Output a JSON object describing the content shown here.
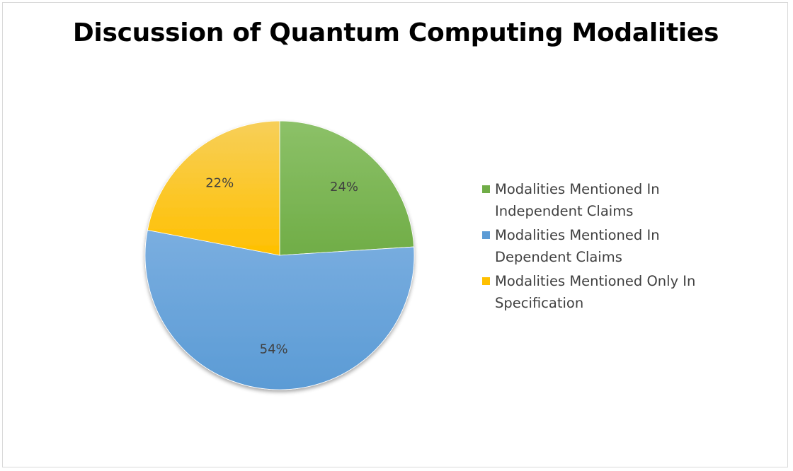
{
  "chart_data": {
    "type": "pie",
    "title": "Discussion of Quantum Computing Modalities",
    "legend_position": "right",
    "slices": [
      {
        "name": "Modalities Mentioned In Independent Claims",
        "value": 24,
        "label": "24%",
        "color": "#70ad47"
      },
      {
        "name": "Modalities Mentioned In Dependent Claims",
        "value": 54,
        "label": "54%",
        "color": "#5b9bd5"
      },
      {
        "name": "Modalities Mentioned Only In Specification",
        "value": 22,
        "label": "22%",
        "color": "#ffc000"
      }
    ]
  },
  "colors": {
    "gradient_light": {
      "green": "#8cc168",
      "blue": "#7aaee0",
      "yellow": "#f7cf59"
    }
  }
}
